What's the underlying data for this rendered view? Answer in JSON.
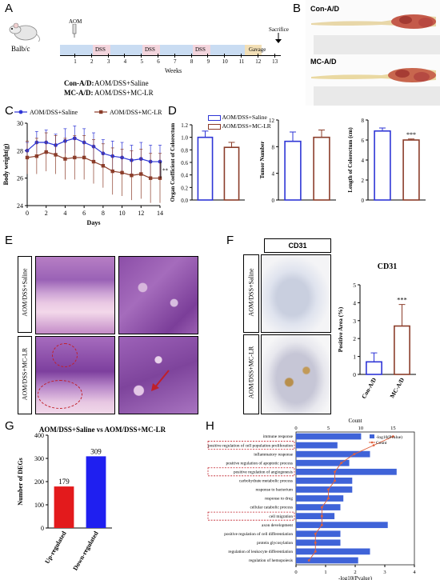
{
  "panel_letters": [
    "A",
    "B",
    "C",
    "D",
    "E",
    "F",
    "G",
    "H"
  ],
  "panel_a": {
    "mouse_label": "Balb/c",
    "aom_label": "AOM",
    "sacrifice_label": "Sacrifice",
    "gavage_label": "Gavage",
    "dss_labels": [
      "DSS",
      "DSS",
      "DSS"
    ],
    "weeks_label": "Weeks",
    "week_numbers": [
      "1",
      "2",
      "3",
      "4",
      "5",
      "6",
      "7",
      "8",
      "9",
      "10",
      "11",
      "12",
      "13"
    ],
    "groups": [
      {
        "name": "Con-A/D",
        "desc": "AOM/DSS+Saline"
      },
      {
        "name": "MC-A/D",
        "desc": "AOM/DSS+MC-LR"
      }
    ],
    "colors": {
      "timeline": "#c9dcf2",
      "dss": "#f3d5dd",
      "gavage": "#f2dfb6"
    }
  },
  "panel_b": {
    "labels": [
      "Con-A/D",
      "MC-A/D"
    ],
    "ruler_numbers": [
      "0",
      "1 cm",
      "2",
      "3",
      "4",
      "5",
      "6",
      "7",
      "8"
    ]
  },
  "chart_data": [
    {
      "panel": "C",
      "type": "line",
      "xlabel": "Days",
      "ylabel": "Body weight(g)",
      "ylim": [
        24,
        30
      ],
      "yticks": [
        "24",
        "26",
        "28",
        "30"
      ],
      "x": [
        0,
        1,
        2,
        3,
        4,
        5,
        6,
        7,
        8,
        9,
        10,
        11,
        12,
        13,
        14
      ],
      "xticks": [
        "0",
        "2",
        "4",
        "6",
        "8",
        "10",
        "12",
        "14"
      ],
      "series": [
        {
          "name": "AOM/DSS+Saline",
          "color": "#2e35d6",
          "marker": "circle",
          "values": [
            28.0,
            28.6,
            28.6,
            28.4,
            28.7,
            28.9,
            28.6,
            28.3,
            27.8,
            27.6,
            27.5,
            27.3,
            27.4,
            27.2,
            27.2
          ],
          "err": [
            0.6,
            0.8,
            0.9,
            0.8,
            0.9,
            0.9,
            1.0,
            1.0,
            1.0,
            1.1,
            1.1,
            1.1,
            1.2,
            1.2,
            1.2
          ]
        },
        {
          "name": "AOM/DSS+MC-LR",
          "color": "#8b3d2a",
          "marker": "square",
          "values": [
            27.5,
            27.6,
            27.9,
            27.7,
            27.4,
            27.5,
            27.5,
            27.2,
            26.9,
            26.5,
            26.4,
            26.2,
            26.3,
            26.0,
            26.0
          ],
          "err": [
            1.2,
            1.3,
            1.4,
            1.4,
            1.5,
            1.6,
            1.6,
            1.6,
            1.6,
            1.7,
            1.7,
            1.8,
            1.8,
            1.8,
            1.8
          ]
        }
      ],
      "significance": "**",
      "legend": "top"
    },
    {
      "panel": "D1",
      "type": "bar",
      "ylabel": "Organ Coefficient of Colorectum",
      "ylim": [
        0,
        1.2
      ],
      "yticks": [
        "0.0",
        "0.2",
        "0.4",
        "0.6",
        "0.8",
        "1.0",
        "1.2"
      ],
      "categories": [
        "Con-A/D",
        "MC-A/D"
      ],
      "values": [
        1.0,
        0.84
      ],
      "err": [
        0.1,
        0.08
      ],
      "colors": [
        "#2e35d6",
        "#8b3d2a"
      ]
    },
    {
      "panel": "D2",
      "type": "bar",
      "ylabel": "Tumor Number",
      "ylim": [
        0,
        12
      ],
      "yticks": [
        "0",
        "4",
        "8",
        "12"
      ],
      "categories": [
        "Con-A/D",
        "MC-A/D"
      ],
      "values": [
        8.8,
        9.4
      ],
      "err": [
        1.4,
        1.1
      ],
      "colors": [
        "#2e35d6",
        "#8b3d2a"
      ]
    },
    {
      "panel": "D3",
      "type": "bar",
      "ylabel": "Length of Colorectum (cm)",
      "ylim": [
        0,
        8
      ],
      "yticks": [
        "0",
        "2",
        "4",
        "6",
        "8"
      ],
      "categories": [
        "Con-A/D",
        "MC-A/D"
      ],
      "values": [
        6.9,
        6.0
      ],
      "err": [
        0.3,
        0.1
      ],
      "colors": [
        "#2e35d6",
        "#8b3d2a"
      ],
      "significance": "***"
    },
    {
      "panel": "F",
      "type": "bar",
      "title": "CD31",
      "ylabel": "Positive Area (%)",
      "ylim": [
        0,
        5
      ],
      "yticks": [
        "0",
        "1",
        "2",
        "3",
        "4",
        "5"
      ],
      "categories": [
        "Con-A/D",
        "MC-A/D"
      ],
      "values": [
        0.7,
        2.7
      ],
      "err": [
        0.5,
        1.2
      ],
      "colors": [
        "#2e35d6",
        "#8b3d2a"
      ],
      "significance": "***"
    },
    {
      "panel": "G",
      "type": "bar",
      "title": "AOM/DSS+Saline vs AOM/DSS+MC-LR",
      "ylabel": "Number of DEGs",
      "ylim": [
        0,
        400
      ],
      "yticks": [
        "0",
        "100",
        "200",
        "300",
        "400"
      ],
      "categories": [
        "Up-regulated",
        "Down-regulated"
      ],
      "values": [
        179,
        309
      ],
      "colors": [
        "#e31a1c",
        "#1f1ff0"
      ]
    },
    {
      "panel": "H",
      "type": "bar",
      "orientation": "horizontal",
      "xlabel": "-log10(Pvalue)",
      "top_axis_label": "Count",
      "xlim": [
        0,
        4
      ],
      "xticks": [
        "0",
        "1",
        "2",
        "3",
        "4"
      ],
      "top_ticks": [
        "0",
        "5",
        "10",
        "15"
      ],
      "legend": [
        "-log10(Pvalue)",
        "Count"
      ],
      "categories": [
        "immune response",
        "positive regulation of cell population proliferation",
        "inflammatory response",
        "positive regulation of apoptotic process",
        "positive regulation of angiogenesis",
        "carbohydrate metabolic process",
        "response to bacterium",
        "response to drug",
        "cellular catabolic process",
        "cell migration",
        "axon development",
        "positive regulation of cell differentiation",
        "protein glycosylation",
        "regulation of leukocyte differentiation",
        "regulation of hemopoiesis"
      ],
      "values": [
        2.2,
        1.4,
        2.5,
        1.8,
        3.4,
        1.9,
        1.9,
        1.6,
        1.5,
        1.3,
        3.1,
        1.5,
        1.5,
        2.5,
        2.1
      ],
      "counts": [
        15,
        12,
        9,
        7,
        6,
        6,
        5,
        5,
        4,
        4,
        4,
        3,
        3,
        3,
        2
      ],
      "highlighted": [
        "positive regulation of cell population proliferation",
        "positive regulation of angiogenesis",
        "cell migration"
      ],
      "colors": {
        "bar": "#3f63d8",
        "line": "#e0603c"
      }
    }
  ],
  "panel_e": {
    "row_labels": [
      "AOM/DSS+Saline",
      "AOM/DSS+MC-LR"
    ]
  },
  "panel_f": {
    "header": "CD31",
    "row_labels": [
      "AOM/DSS+Saline",
      "AOM/DSS+MC-LR"
    ]
  }
}
